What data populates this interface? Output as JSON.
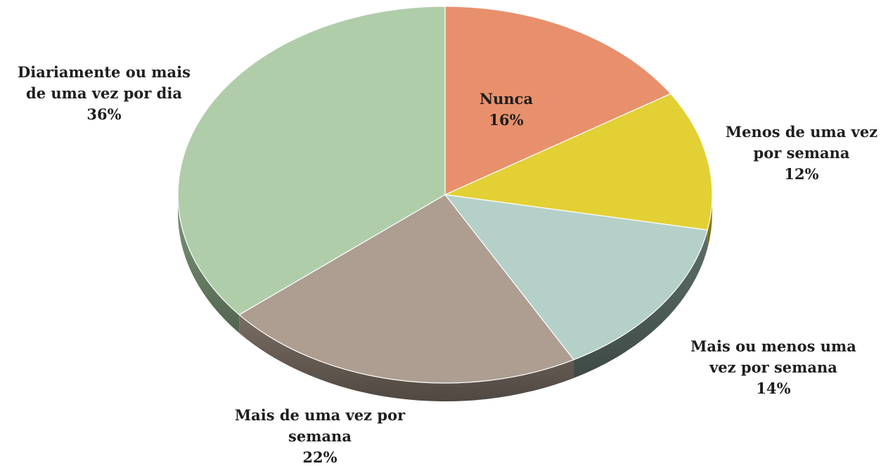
{
  "chart_data": {
    "type": "pie",
    "title": "",
    "slices": [
      {
        "label_lines": [
          "Nunca"
        ],
        "value": 16,
        "value_label": "16%",
        "color": "#E8906C",
        "side_color": "#B36A4E"
      },
      {
        "label_lines": [
          "Menos de uma vez",
          "por semana"
        ],
        "value": 12,
        "value_label": "12%",
        "color": "#E3D034",
        "side_color": "#A89A24"
      },
      {
        "label_lines": [
          "Mais ou menos uma",
          "vez por semana"
        ],
        "value": 14,
        "value_label": "14%",
        "color": "#B4D0C9",
        "side_color": "#5E706A"
      },
      {
        "label_lines": [
          "Mais de uma vez por",
          "semana"
        ],
        "value": 22,
        "value_label": "22%",
        "color": "#AD9E91",
        "side_color": "#7A6E64"
      },
      {
        "label_lines": [
          "Diariamente ou mais",
          "de uma vez por dia"
        ],
        "value": 36,
        "value_label": "36%",
        "color": "#B0CDAA",
        "side_color": "#7E9A7A"
      }
    ],
    "legend": "none",
    "style": "3d-pie"
  }
}
